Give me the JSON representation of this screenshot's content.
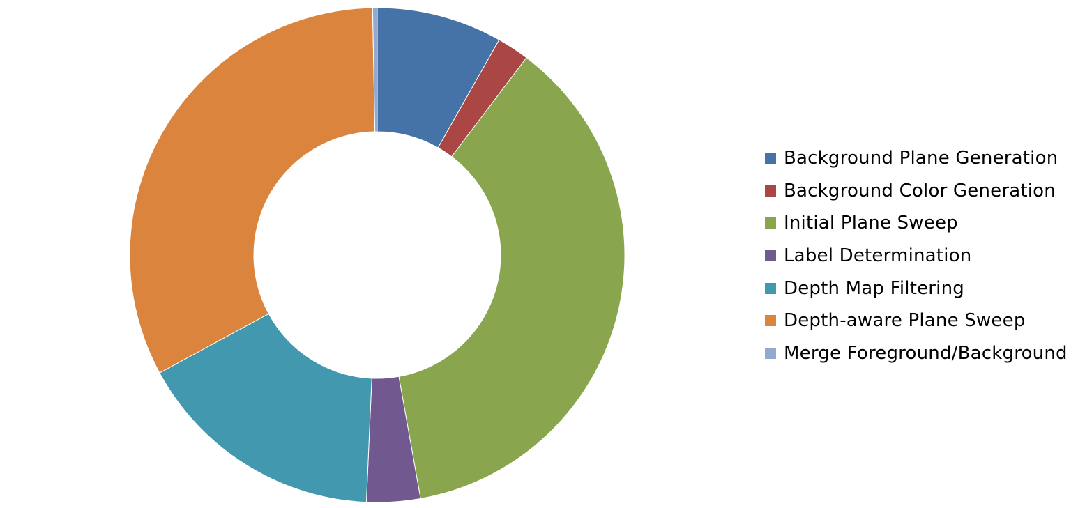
{
  "chart_data": {
    "type": "pie",
    "variant": "donut",
    "title": "",
    "slices": [
      {
        "label": "Background Plane Generation",
        "value": 8.2,
        "color": "#4572A7"
      },
      {
        "label": "Background Color Generation",
        "value": 2.1,
        "color": "#AA4643"
      },
      {
        "label": "Initial Plane Sweep",
        "value": 36.9,
        "color": "#89A54E"
      },
      {
        "label": "Label Determination",
        "value": 3.5,
        "color": "#71588F"
      },
      {
        "label": "Depth Map Filtering",
        "value": 16.4,
        "color": "#4198AF"
      },
      {
        "label": "Depth-aware Plane Sweep",
        "value": 32.6,
        "color": "#DB843D"
      },
      {
        "label": "Merge Foreground/Background",
        "value": 0.3,
        "color": "#93A9CF"
      }
    ],
    "legend_position": "right",
    "data_labels": false
  }
}
